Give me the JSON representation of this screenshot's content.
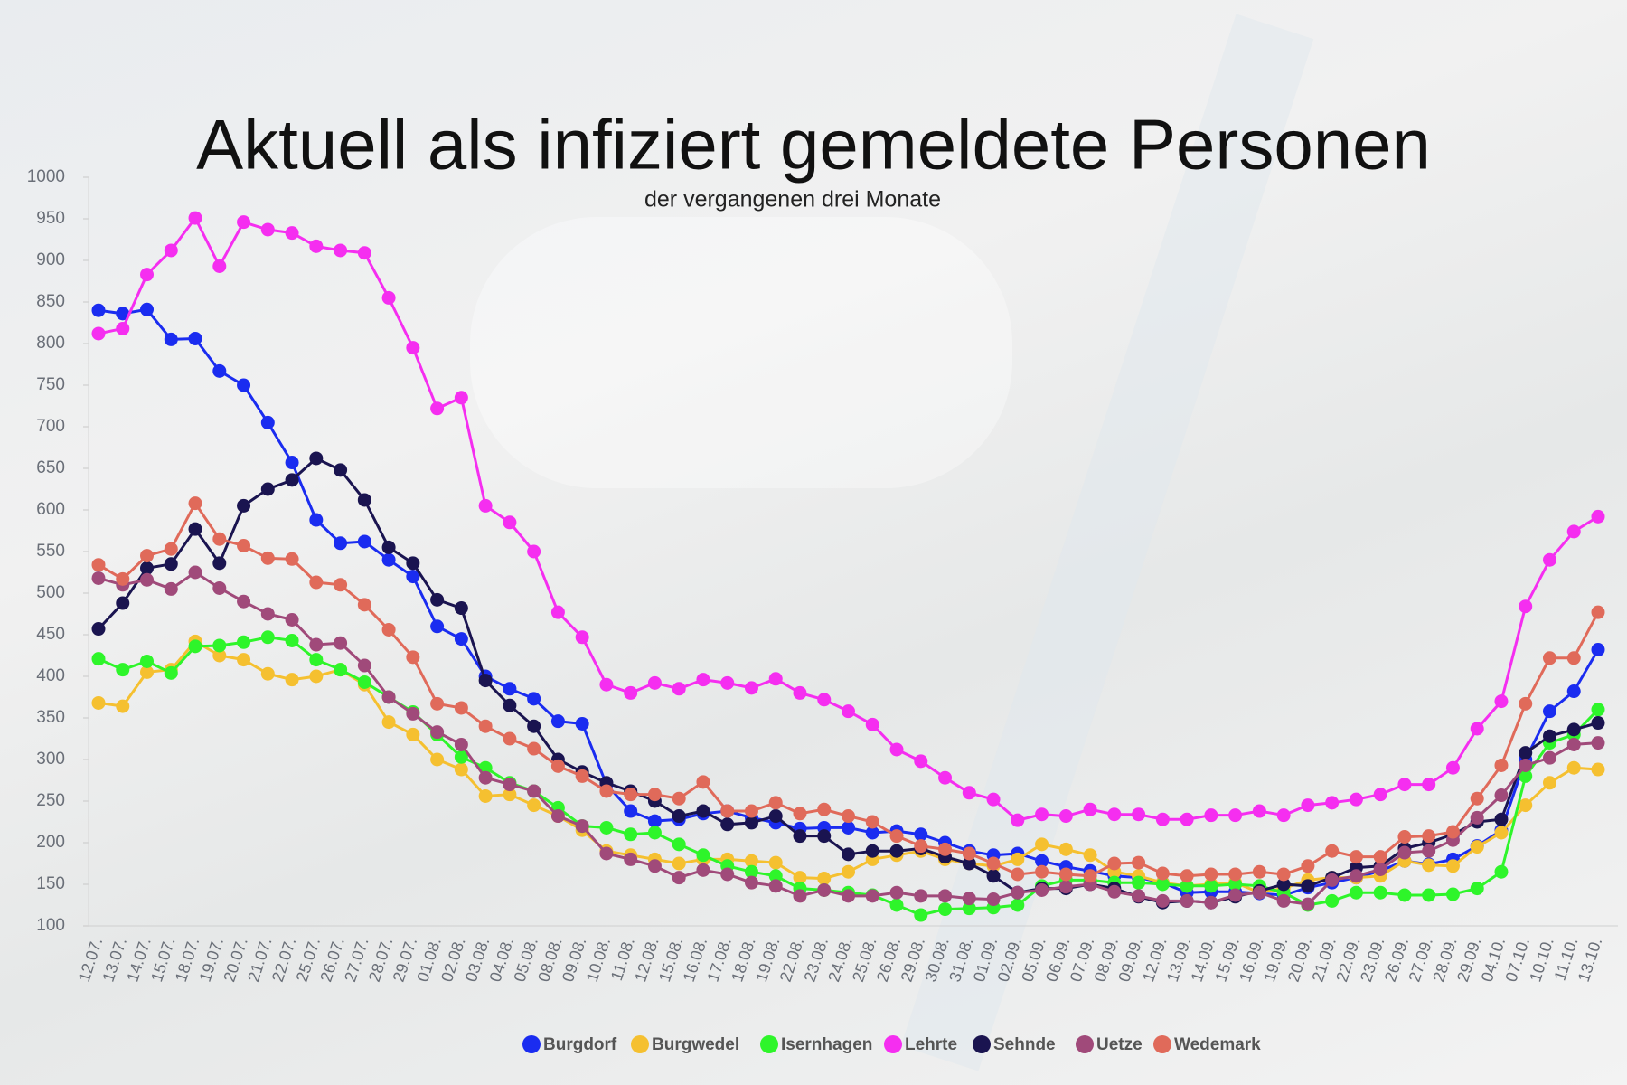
{
  "chart_data": {
    "type": "line",
    "title": "Aktuell als infiziert gemeldete Personen",
    "subtitle": "der vergangenen drei Monate",
    "categories": [
      "12.07.",
      "13.07.",
      "14.07.",
      "15.07.",
      "18.07.",
      "19.07.",
      "20.07.",
      "21.07.",
      "22.07.",
      "25.07.",
      "26.07.",
      "27.07.",
      "28.07.",
      "29.07.",
      "01.08.",
      "02.08.",
      "03.08.",
      "04.08.",
      "05.08.",
      "08.08.",
      "09.08.",
      "10.08.",
      "11.08.",
      "12.08.",
      "15.08.",
      "16.08.",
      "17.08.",
      "18.08.",
      "19.08.",
      "22.08.",
      "23.08.",
      "24.08.",
      "25.08.",
      "26.08.",
      "29.08.",
      "30.08.",
      "31.08.",
      "01.09.",
      "02.09.",
      "05.09.",
      "06.09.",
      "07.09.",
      "08.09.",
      "09.09.",
      "12.09.",
      "13.09.",
      "14.09.",
      "15.09.",
      "16.09.",
      "19.09.",
      "20.09.",
      "21.09.",
      "22.09.",
      "23.09.",
      "26.09.",
      "27.09.",
      "28.09.",
      "29.09.",
      "04.10.",
      "07.10.",
      "10.10.",
      "11.10.",
      "13.10."
    ],
    "series": [
      {
        "name": "Burgdorf",
        "color": "#1a2cf0",
        "values": [
          840,
          836,
          841,
          805,
          806,
          767,
          750,
          705,
          657,
          588,
          560,
          562,
          540,
          520,
          460,
          445,
          400,
          385,
          373,
          346,
          343,
          270,
          238,
          226,
          228,
          235,
          238,
          230,
          224,
          217,
          218,
          218,
          212,
          214,
          210,
          200,
          190,
          185,
          187,
          178,
          171,
          166,
          160,
          158,
          152,
          140,
          141,
          141,
          139,
          137,
          146,
          152,
          158,
          166,
          178,
          174,
          180,
          196,
          215,
          300,
          358,
          382,
          432
        ]
      },
      {
        "name": "Burgwedel",
        "color": "#f5c030",
        "values": [
          368,
          364,
          405,
          408,
          442,
          425,
          420,
          403,
          396,
          400,
          408,
          390,
          345,
          330,
          300,
          288,
          256,
          258,
          245,
          232,
          215,
          190,
          185,
          180,
          175,
          180,
          180,
          178,
          176,
          158,
          157,
          165,
          180,
          185,
          190,
          180,
          175,
          172,
          180,
          198,
          192,
          185,
          165,
          160,
          152,
          148,
          150,
          152,
          140,
          145,
          155,
          158,
          158,
          160,
          178,
          173,
          172,
          195,
          212,
          245,
          272,
          290,
          288
        ]
      },
      {
        "name": "Isernhagen",
        "color": "#2ef52a",
        "values": [
          421,
          408,
          418,
          404,
          436,
          437,
          441,
          447,
          443,
          420,
          408,
          393,
          375,
          357,
          330,
          303,
          290,
          272,
          262,
          242,
          220,
          218,
          210,
          212,
          198,
          185,
          172,
          165,
          160,
          145,
          143,
          140,
          137,
          125,
          113,
          120,
          121,
          122,
          125,
          148,
          155,
          155,
          152,
          152,
          150,
          148,
          148,
          150,
          148,
          140,
          125,
          130,
          140,
          140,
          137,
          137,
          138,
          145,
          165,
          280,
          320,
          330,
          360
        ]
      },
      {
        "name": "Lehrte",
        "color": "#f52ef0",
        "values": [
          812,
          818,
          883,
          912,
          951,
          893,
          946,
          937,
          933,
          917,
          912,
          909,
          855,
          795,
          722,
          735,
          605,
          585,
          550,
          477,
          447,
          390,
          380,
          392,
          385,
          396,
          392,
          386,
          397,
          380,
          372,
          358,
          342,
          312,
          298,
          278,
          260,
          252,
          227,
          234,
          232,
          240,
          234,
          234,
          228,
          228,
          233,
          233,
          238,
          233,
          245,
          248,
          252,
          258,
          270,
          270,
          290,
          337,
          370,
          484,
          540,
          574,
          592
        ]
      },
      {
        "name": "Sehnde",
        "color": "#1a1450",
        "values": [
          457,
          488,
          530,
          535,
          577,
          536,
          605,
          625,
          636,
          662,
          648,
          612,
          555,
          536,
          492,
          482,
          395,
          365,
          340,
          300,
          285,
          272,
          262,
          250,
          232,
          238,
          222,
          224,
          232,
          208,
          208,
          186,
          190,
          190,
          193,
          183,
          175,
          160,
          140,
          145,
          145,
          150,
          145,
          135,
          128,
          130,
          128,
          135,
          142,
          150,
          148,
          158,
          170,
          172,
          193,
          200,
          210,
          225,
          228,
          308,
          328,
          336,
          344
        ]
      },
      {
        "name": "Uetze",
        "color": "#a04a7a",
        "values": [
          518,
          510,
          516,
          505,
          525,
          506,
          490,
          475,
          468,
          438,
          440,
          413,
          375,
          355,
          333,
          318,
          278,
          270,
          262,
          232,
          220,
          187,
          180,
          172,
          158,
          167,
          162,
          152,
          148,
          136,
          143,
          136,
          136,
          140,
          136,
          136,
          133,
          132,
          140,
          143,
          147,
          150,
          141,
          136,
          130,
          130,
          128,
          137,
          140,
          130,
          126,
          155,
          160,
          168,
          188,
          190,
          203,
          230,
          257,
          293,
          302,
          318,
          320
        ]
      },
      {
        "name": "Wedemark",
        "color": "#e06a5a",
        "values": [
          534,
          517,
          545,
          553,
          608,
          565,
          557,
          542,
          541,
          513,
          510,
          486,
          456,
          423,
          367,
          362,
          340,
          325,
          313,
          292,
          280,
          262,
          258,
          258,
          253,
          273,
          238,
          238,
          248,
          235,
          240,
          232,
          225,
          208,
          196,
          192,
          187,
          175,
          162,
          165,
          162,
          160,
          175,
          176,
          163,
          160,
          162,
          162,
          165,
          162,
          172,
          190,
          183,
          183,
          207,
          208,
          213,
          253,
          293,
          367,
          422,
          422,
          477
        ]
      }
    ],
    "ylim": [
      100,
      1000
    ],
    "yticks": [
      100,
      150,
      200,
      250,
      300,
      350,
      400,
      450,
      500,
      550,
      600,
      650,
      700,
      750,
      800,
      850,
      900,
      950,
      1000
    ],
    "legend": "bottom"
  }
}
